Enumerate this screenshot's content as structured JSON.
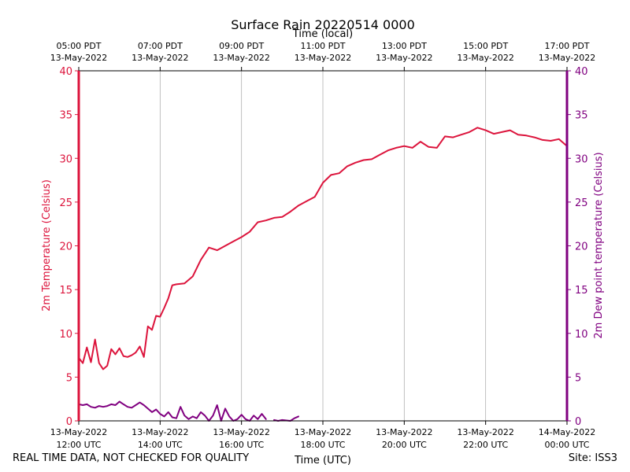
{
  "chart_data": {
    "type": "line",
    "title": "Surface Rain 20220514 0000",
    "top_axis_label": "Time (local)",
    "xlabel": "Time (UTC)",
    "ylabel_left": "2m Temperature (Celsius)",
    "ylabel_right": "2m Dew point temperature (Celsius)",
    "ylim": [
      0,
      40
    ],
    "y_ticks": [
      0,
      5,
      10,
      15,
      20,
      25,
      30,
      35,
      40
    ],
    "x_range_hours_utc": [
      12,
      24
    ],
    "grid": "vertical",
    "x_ticks_utc": [
      {
        "hour": 12,
        "date": "13-May-2022",
        "time": "12:00 UTC"
      },
      {
        "hour": 14,
        "date": "13-May-2022",
        "time": "14:00 UTC"
      },
      {
        "hour": 16,
        "date": "13-May-2022",
        "time": "16:00 UTC"
      },
      {
        "hour": 18,
        "date": "13-May-2022",
        "time": "18:00 UTC"
      },
      {
        "hour": 20,
        "date": "13-May-2022",
        "time": "20:00 UTC"
      },
      {
        "hour": 22,
        "date": "13-May-2022",
        "time": "22:00 UTC"
      },
      {
        "hour": 24,
        "date": "14-May-2022",
        "time": "00:00 UTC"
      }
    ],
    "x_ticks_local": [
      {
        "hour": 12,
        "time": "05:00 PDT",
        "date": "13-May-2022"
      },
      {
        "hour": 14,
        "time": "07:00 PDT",
        "date": "13-May-2022"
      },
      {
        "hour": 16,
        "time": "09:00 PDT",
        "date": "13-May-2022"
      },
      {
        "hour": 18,
        "time": "11:00 PDT",
        "date": "13-May-2022"
      },
      {
        "hour": 20,
        "time": "13:00 PDT",
        "date": "13-May-2022"
      },
      {
        "hour": 22,
        "time": "15:00 PDT",
        "date": "13-May-2022"
      },
      {
        "hour": 24,
        "time": "17:00 PDT",
        "date": "13-May-2022"
      }
    ],
    "series": [
      {
        "color": "#dc143c",
        "axis": "left",
        "x": [
          12.0,
          12.1,
          12.2,
          12.3,
          12.4,
          12.5,
          12.6,
          12.7,
          12.8,
          12.9,
          13.0,
          13.1,
          13.2,
          13.3,
          13.4,
          13.5,
          13.6,
          13.7,
          13.8,
          13.9,
          14.0,
          14.1,
          14.2,
          14.3,
          14.4,
          14.6,
          14.8,
          15.0,
          15.2,
          15.4,
          15.6,
          15.8,
          16.0,
          16.2,
          16.4,
          16.6,
          16.8,
          17.0,
          17.2,
          17.4,
          17.6,
          17.8,
          18.0,
          18.2,
          18.4,
          18.6,
          18.8,
          19.0,
          19.2,
          19.4,
          19.6,
          19.8,
          20.0,
          20.2,
          20.4,
          20.6,
          20.8,
          21.0,
          21.2,
          21.4,
          21.6,
          21.8,
          22.0,
          22.2,
          22.4,
          22.6,
          22.8,
          23.0,
          23.2,
          23.4,
          23.6,
          23.8,
          24.0
        ],
        "values": [
          7.2,
          6.6,
          8.4,
          6.7,
          9.3,
          6.6,
          5.9,
          6.3,
          8.2,
          7.6,
          8.3,
          7.4,
          7.3,
          7.5,
          7.8,
          8.5,
          7.3,
          10.8,
          10.4,
          12.0,
          11.9,
          12.9,
          14.0,
          15.5,
          15.6,
          15.7,
          16.5,
          18.4,
          19.8,
          19.5,
          20.0,
          20.5,
          21.0,
          21.6,
          22.7,
          22.9,
          23.2,
          23.3,
          23.9,
          24.6,
          25.1,
          25.6,
          27.2,
          28.1,
          28.3,
          29.1,
          29.5,
          29.8,
          29.9,
          30.4,
          30.9,
          31.2,
          31.4,
          31.2,
          31.9,
          31.3,
          31.2,
          32.5,
          32.4,
          32.7,
          33.0,
          33.5,
          33.2,
          32.8,
          33.0,
          33.2,
          32.7,
          32.6,
          32.4,
          32.1,
          32.0,
          32.2,
          31.4
        ]
      },
      {
        "color": "#800080",
        "axis": "right",
        "x": [
          12.0,
          12.1,
          12.2,
          12.3,
          12.4,
          12.5,
          12.6,
          12.7,
          12.8,
          12.9,
          13.0,
          13.1,
          13.2,
          13.3,
          13.4,
          13.5,
          13.6,
          13.7,
          13.8,
          13.9,
          14.0,
          14.1,
          14.2,
          14.3,
          14.4,
          14.5,
          14.6,
          14.7,
          14.8,
          14.9,
          15.0,
          15.1,
          15.2,
          15.3,
          15.4,
          15.5,
          15.6,
          15.7,
          15.8,
          15.9,
          16.0,
          16.1,
          16.2,
          16.3,
          16.4,
          16.5,
          16.6
        ],
        "values": [
          1.9,
          1.8,
          1.9,
          1.6,
          1.5,
          1.7,
          1.6,
          1.7,
          1.9,
          1.8,
          2.2,
          1.9,
          1.6,
          1.5,
          1.8,
          2.1,
          1.8,
          1.4,
          1.0,
          1.3,
          0.8,
          0.5,
          1.0,
          0.4,
          0.3,
          1.6,
          0.6,
          0.2,
          0.5,
          0.3,
          1.0,
          0.6,
          0.0,
          0.6,
          1.8,
          0.0,
          1.4,
          0.5,
          0.0,
          0.2,
          0.7,
          0.2,
          0.0,
          0.6,
          0.2,
          0.8,
          0.2
        ]
      },
      {
        "color": "#800080",
        "axis": "right",
        "x": [
          16.8,
          16.9,
          17.0,
          17.2,
          17.3,
          17.4
        ],
        "values": [
          0.1,
          0.0,
          0.1,
          0.0,
          0.3,
          0.5
        ]
      }
    ]
  },
  "footer": {
    "disclaimer": "REAL TIME DATA, NOT CHECKED FOR QUALITY",
    "site": "Site: ISS3"
  }
}
